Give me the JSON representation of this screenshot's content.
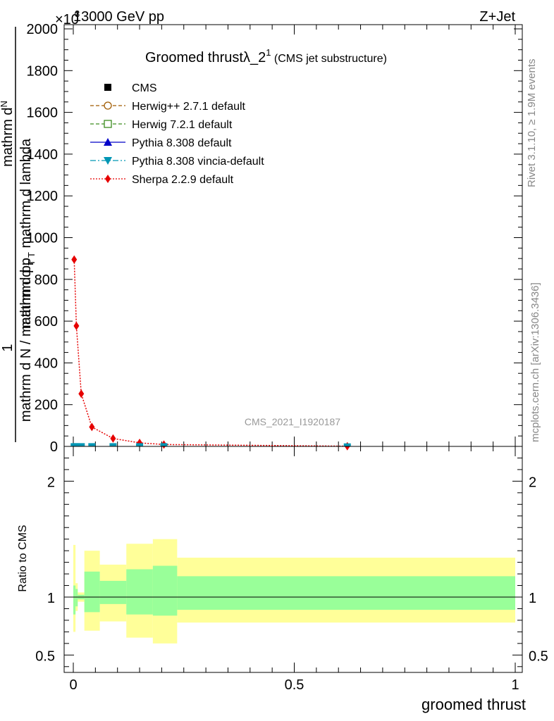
{
  "header": {
    "energy_label": "13000 GeV pp",
    "process_label": "Z+Jet",
    "scale_label": "×10",
    "scale_exponent": "3"
  },
  "chart_data": [
    {
      "type": "line",
      "title": "Groomed thrustλ_2",
      "title_superscript": "1",
      "subtitle": "(CMS jet substructure)",
      "ylabel_numerator": "mathrm d",
      "ylabel_numerator_sub": "N",
      "ylabel_denominator": "mathrm d p",
      "ylabel_denominator_sub": "T",
      "ylabel_denominator_rest": " mathrm d lambda",
      "ylabel_prefix": "1",
      "ylabel_prefix_denominator": "mathrm d N / mathrm d p",
      "ylabel_prefix_denominator_sub": "T",
      "xlim": [
        0,
        1
      ],
      "ylim": [
        0,
        2000
      ],
      "yticks": [
        0,
        200,
        400,
        600,
        800,
        1000,
        1200,
        1400,
        1600,
        1800,
        2000
      ],
      "ytick_labels": [
        "0",
        "200",
        "400",
        "600",
        "800",
        "1000",
        "1200",
        "1400",
        "1600",
        "1800",
        "2000"
      ],
      "watermark": "CMS_2021_I1920187",
      "legend_position": "upper-left",
      "legend": [
        {
          "name": "CMS",
          "marker": "square-filled",
          "color": "#000000",
          "line": "none"
        },
        {
          "name": "Herwig++ 2.7.1 default",
          "marker": "circle-open",
          "color": "#a05a00",
          "line": "dashed"
        },
        {
          "name": "Herwig 7.2.1 default",
          "marker": "square-open",
          "color": "#3c8c1e",
          "line": "dashed"
        },
        {
          "name": "Pythia 8.308 default",
          "marker": "triangle-up",
          "color": "#0000c8",
          "line": "solid"
        },
        {
          "name": "Pythia 8.308 vincia-default",
          "marker": "triangle-down",
          "color": "#0096b4",
          "line": "dashdot"
        },
        {
          "name": "Sherpa 2.2.9 default",
          "marker": "diamond",
          "color": "#e60000",
          "line": "dotted"
        }
      ],
      "series": [
        {
          "name": "Sherpa 2.2.9 default",
          "x": [
            0.002,
            0.007,
            0.018,
            0.042,
            0.09,
            0.15,
            0.205,
            0.62
          ],
          "y": [
            895,
            577,
            252,
            93,
            38,
            17,
            9,
            1
          ]
        },
        {
          "name": "CMS",
          "x": [
            0.002,
            0.007,
            0.018,
            0.042,
            0.09,
            0.15,
            0.205,
            0.62
          ],
          "y": [
            2,
            2,
            2,
            2,
            2,
            2,
            2,
            1
          ]
        }
      ]
    },
    {
      "type": "area",
      "ylabel": "Ratio to CMS",
      "xlabel": "groomed thrust",
      "xlim": [
        0,
        1
      ],
      "ylim": [
        0.35,
        2.3
      ],
      "xticks": [
        0,
        0.5,
        1
      ],
      "xtick_labels": [
        "0",
        "0.5",
        "1"
      ],
      "yticks": [
        0.5,
        1,
        2
      ],
      "ytick_labels": [
        "0.5",
        "1",
        "2"
      ],
      "bands": {
        "edges": [
          0,
          0.005,
          0.01,
          0.025,
          0.06,
          0.12,
          0.18,
          0.235,
          1.0
        ],
        "yellow_low": [
          0.7,
          0.88,
          0.96,
          0.71,
          0.79,
          0.65,
          0.6,
          0.78
        ],
        "yellow_high": [
          1.45,
          1.12,
          1.04,
          1.4,
          1.28,
          1.46,
          1.5,
          1.34
        ],
        "green_low": [
          0.85,
          0.92,
          0.98,
          0.87,
          0.94,
          0.85,
          0.84,
          0.89
        ],
        "green_high": [
          1.1,
          1.07,
          1.02,
          1.22,
          1.14,
          1.24,
          1.27,
          1.18
        ]
      },
      "reference_line": 1
    }
  ],
  "side_text": {
    "rivet": "Rivet 3.1.10, ≥ 1.9M events",
    "mcplots": "mcplots.cern.ch [arXiv:1306.3436]"
  }
}
